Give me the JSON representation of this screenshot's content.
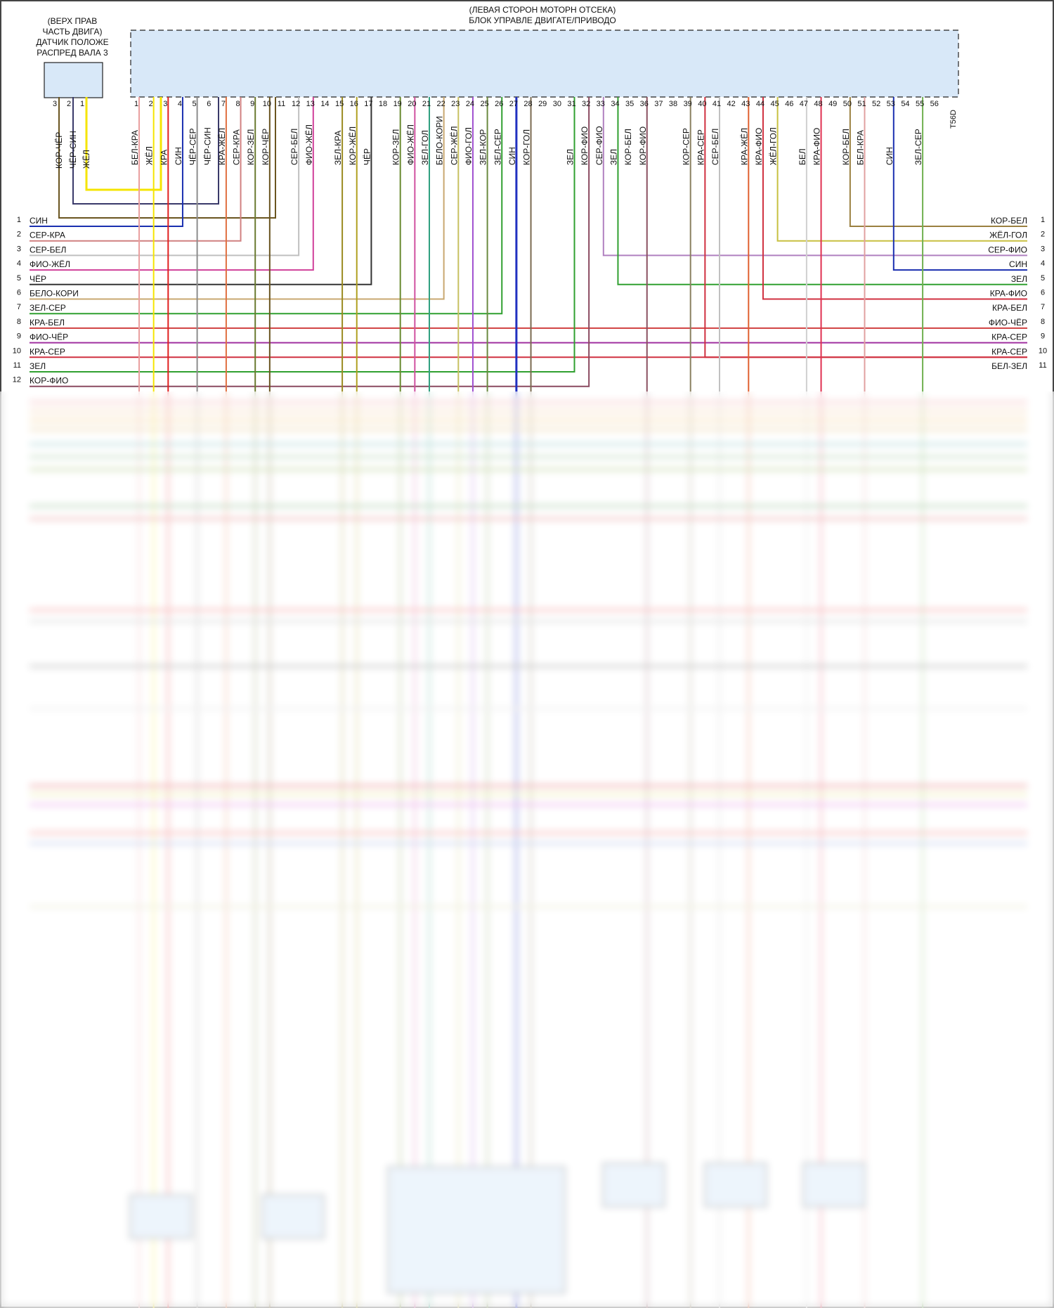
{
  "ecu": {
    "title_line1": "(ЛЕВАЯ СТОРОН МОТОРН ОТСЕКА)",
    "title_line2": "БЛОК УПРАВЛЕ ДВИГАТЕ/ПРИВОДО",
    "connector": "T56D",
    "pins": [
      {
        "n": "1",
        "w": "БЕЛ-КРА",
        "c": "#e9a0a0"
      },
      {
        "n": "2",
        "w": "ЖЁЛ",
        "c": "#f5e400"
      },
      {
        "n": "3",
        "w": "КРА",
        "c": "#e02020"
      },
      {
        "n": "4",
        "w": "СИН",
        "c": "#1a2fb0"
      },
      {
        "n": "5",
        "w": "ЧЁР-СЕР",
        "c": "#8c8c8c"
      },
      {
        "n": "6",
        "w": "ЧЁР-СИН",
        "c": "#3a3a6a"
      },
      {
        "n": "7",
        "w": "КРА-ЖЁЛ",
        "c": "#e07040"
      },
      {
        "n": "8",
        "w": "СЕР-КРА",
        "c": "#d08080"
      },
      {
        "n": "9",
        "w": "КОР-ЗЕЛ",
        "c": "#6a7a30"
      },
      {
        "n": "10",
        "w": "КОР-ЧЁР",
        "c": "#6a5520"
      },
      {
        "n": "11",
        "w": "",
        "c": ""
      },
      {
        "n": "12",
        "w": "СЕР-БЕЛ",
        "c": "#c0c0c0"
      },
      {
        "n": "13",
        "w": "ФИО-ЖЁЛ",
        "c": "#d0409a"
      },
      {
        "n": "14",
        "w": "",
        "c": ""
      },
      {
        "n": "15",
        "w": "ЗЕЛ-КРА",
        "c": "#9a8a20"
      },
      {
        "n": "16",
        "w": "КОР-ЖЁЛ",
        "c": "#b0a020"
      },
      {
        "n": "17",
        "w": "ЧЁР",
        "c": "#333333"
      },
      {
        "n": "18",
        "w": "",
        "c": ""
      },
      {
        "n": "19",
        "w": "КОР-ЗЕЛ",
        "c": "#6a8a30"
      },
      {
        "n": "20",
        "w": "ФИО-ЖЁЛ",
        "c": "#d050a0"
      },
      {
        "n": "21",
        "w": "ЗЕЛ-ГОЛ",
        "c": "#30a080"
      },
      {
        "n": "22",
        "w": "БЕЛО-КОРИ",
        "c": "#c8a870"
      },
      {
        "n": "23",
        "w": "СЕР-ЖЁЛ",
        "c": "#c8c060"
      },
      {
        "n": "24",
        "w": "ФИО-ГОЛ",
        "c": "#a050d0"
      },
      {
        "n": "25",
        "w": "ЗЕЛ-КОР",
        "c": "#6a8a40"
      },
      {
        "n": "26",
        "w": "ЗЕЛ-СЕР",
        "c": "#70a070"
      },
      {
        "n": "27",
        "w": "СИН",
        "c": "#2030c0"
      },
      {
        "n": "28",
        "w": "КОР-ГОЛ",
        "c": "#7a6a50"
      },
      {
        "n": "29",
        "w": "",
        "c": ""
      },
      {
        "n": "30",
        "w": "",
        "c": ""
      },
      {
        "n": "31",
        "w": "ЗЕЛ",
        "c": "#30a030"
      },
      {
        "n": "32",
        "w": "КОР-ФИО",
        "c": "#8a4a60"
      },
      {
        "n": "33",
        "w": "СЕР-ФИО",
        "c": "#b080c0"
      },
      {
        "n": "34",
        "w": "ЗЕЛ",
        "c": "#30a030"
      },
      {
        "n": "35",
        "w": "КОР-БЕЛ",
        "c": "#a08a60"
      },
      {
        "n": "36",
        "w": "КОР-ФИО",
        "c": "#8a5060"
      },
      {
        "n": "37",
        "w": "",
        "c": ""
      },
      {
        "n": "38",
        "w": "",
        "c": ""
      },
      {
        "n": "39",
        "w": "КОР-СЕР",
        "c": "#8a8060"
      },
      {
        "n": "40",
        "w": "КРА-СЕР",
        "c": "#d04040"
      },
      {
        "n": "41",
        "w": "СЕР-БЕЛ",
        "c": "#c0c0c0"
      },
      {
        "n": "42",
        "w": "",
        "c": ""
      },
      {
        "n": "43",
        "w": "КРА-ЖЁЛ",
        "c": "#e06030"
      },
      {
        "n": "44",
        "w": "КРА-ФИО",
        "c": "#d03040"
      },
      {
        "n": "45",
        "w": "ЖЁЛ-ГОЛ",
        "c": "#c8c040"
      },
      {
        "n": "46",
        "w": "",
        "c": ""
      },
      {
        "n": "47",
        "w": "БЕЛ",
        "c": "#d0d0d0"
      },
      {
        "n": "48",
        "w": "КРА-ФИО",
        "c": "#e03050"
      },
      {
        "n": "49",
        "w": "",
        "c": ""
      },
      {
        "n": "50",
        "w": "КОР-БЕЛ",
        "c": "#9a8040"
      },
      {
        "n": "51",
        "w": "БЕЛ-КРА",
        "c": "#e0a0a0"
      },
      {
        "n": "52",
        "w": "",
        "c": ""
      },
      {
        "n": "53",
        "w": "СИН",
        "c": "#1a2fb0"
      },
      {
        "n": "54",
        "w": "",
        "c": ""
      },
      {
        "n": "55",
        "w": "ЗЕЛ-СЕР",
        "c": "#70b050"
      },
      {
        "n": "56",
        "w": "",
        "c": ""
      }
    ]
  },
  "sensor": {
    "title_lines": [
      "(ВЕРХ ПРАВ",
      "ЧАСТЬ ДВИГА)",
      "ДАТЧИК ПОЛОЖЕ",
      "РАСПРЕД ВАЛА 3"
    ],
    "pins": [
      {
        "n": "3",
        "w": "КОР-ЧЁР",
        "c": "#6a5520"
      },
      {
        "n": "2",
        "w": "ЧЁР-СИН",
        "c": "#3a3a6a"
      },
      {
        "n": "1",
        "w": "ЖЁЛ",
        "c": "#f5e400"
      }
    ]
  },
  "left_rows": [
    {
      "n": "1",
      "w": "СИН",
      "c": "#1a2fb0"
    },
    {
      "n": "2",
      "w": "СЕР-КРА",
      "c": "#d08080"
    },
    {
      "n": "3",
      "w": "СЕР-БЕЛ",
      "c": "#c0c0c0"
    },
    {
      "n": "4",
      "w": "ФИО-ЖЁЛ",
      "c": "#d0409a"
    },
    {
      "n": "5",
      "w": "ЧЁР",
      "c": "#333333"
    },
    {
      "n": "6",
      "w": "БЕЛО-КОРИ",
      "c": "#c8a870"
    },
    {
      "n": "7",
      "w": "ЗЕЛ-СЕР",
      "c": "#30a030"
    },
    {
      "n": "8",
      "w": "КРА-БЕЛ",
      "c": "#d04040"
    },
    {
      "n": "9",
      "w": "ФИО-ЧЁР",
      "c": "#a030a0"
    },
    {
      "n": "10",
      "w": "КРА-СЕР",
      "c": "#d03040"
    },
    {
      "n": "11",
      "w": "ЗЕЛ",
      "c": "#30a030"
    },
    {
      "n": "12",
      "w": "КОР-ФИО",
      "c": "#8a4a60"
    }
  ],
  "right_rows": [
    {
      "n": "1",
      "w": "КОР-БЕЛ",
      "c": "#9a8040"
    },
    {
      "n": "2",
      "w": "ЖЁЛ-ГОЛ",
      "c": "#c8c040"
    },
    {
      "n": "3",
      "w": "СЕР-ФИО",
      "c": "#b080c0"
    },
    {
      "n": "4",
      "w": "СИН",
      "c": "#1a2fb0"
    },
    {
      "n": "5",
      "w": "ЗЕЛ",
      "c": "#30a030"
    },
    {
      "n": "6",
      "w": "КРА-ФИО",
      "c": "#d03040"
    },
    {
      "n": "7",
      "w": "КРА-БЕЛ",
      "c": "#d04040"
    },
    {
      "n": "8",
      "w": "ФИО-ЧЁР",
      "c": "#a030a0"
    },
    {
      "n": "9",
      "w": "КРА-СЕР",
      "c": "#d03040"
    },
    {
      "n": "10",
      "w": "КРА-СЕР",
      "c": "#d03040"
    },
    {
      "n": "11",
      "w": "БЕЛ-ЗЕЛ",
      "c": "#c0d0a0"
    }
  ],
  "blurred_rows": [
    {
      "c": "#f0a0a0"
    },
    {
      "c": "#f0c090"
    },
    {
      "c": "#f0c070"
    },
    {
      "c": "#e0c080"
    },
    {
      "c": "#80c0c0"
    },
    {
      "c": "#90c090"
    },
    {
      "c": "#a0c070"
    },
    {
      "c": "#80b080"
    },
    {
      "c": "#e08080"
    },
    {
      "c": "#f08080"
    },
    {
      "c": "#c0c0c0"
    },
    {
      "c": "#909090"
    },
    {
      "c": "#e0e0e0"
    },
    {
      "c": "#e06060"
    },
    {
      "c": "#e0e080"
    },
    {
      "c": "#e080e0"
    },
    {
      "c": "#f08080"
    },
    {
      "c": "#a0b0e0"
    },
    {
      "c": "#e0e0c0"
    }
  ]
}
